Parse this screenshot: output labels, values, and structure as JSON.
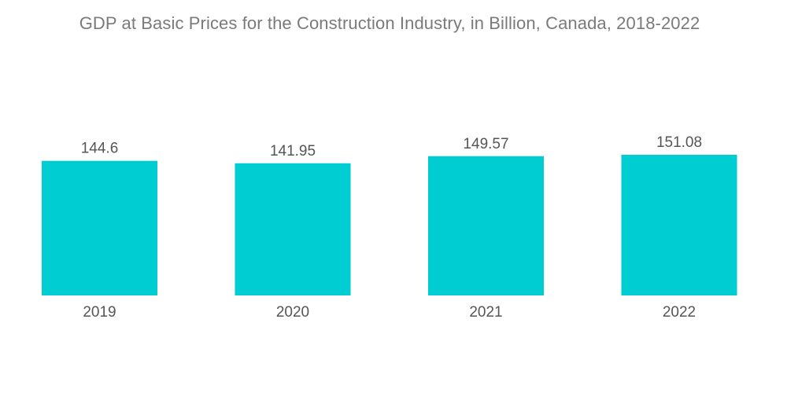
{
  "chart_data": {
    "type": "bar",
    "title": "GDP at Basic Prices for the Construction Industry, in Billion, Canada, 2018-2022",
    "categories": [
      "2019",
      "2020",
      "2021",
      "2022"
    ],
    "values": [
      144.6,
      141.95,
      149.57,
      151.08
    ],
    "value_labels": [
      "144.6",
      "141.95",
      "149.57",
      "151.08"
    ],
    "bar_color": "#00cdd1",
    "label_color": "#555555",
    "title_color": "#7a7a7a",
    "xlabel": "",
    "ylabel": "",
    "ylim": [
      0,
      151.08
    ],
    "grid": false,
    "legend": "none",
    "y_axis_visible": false
  }
}
